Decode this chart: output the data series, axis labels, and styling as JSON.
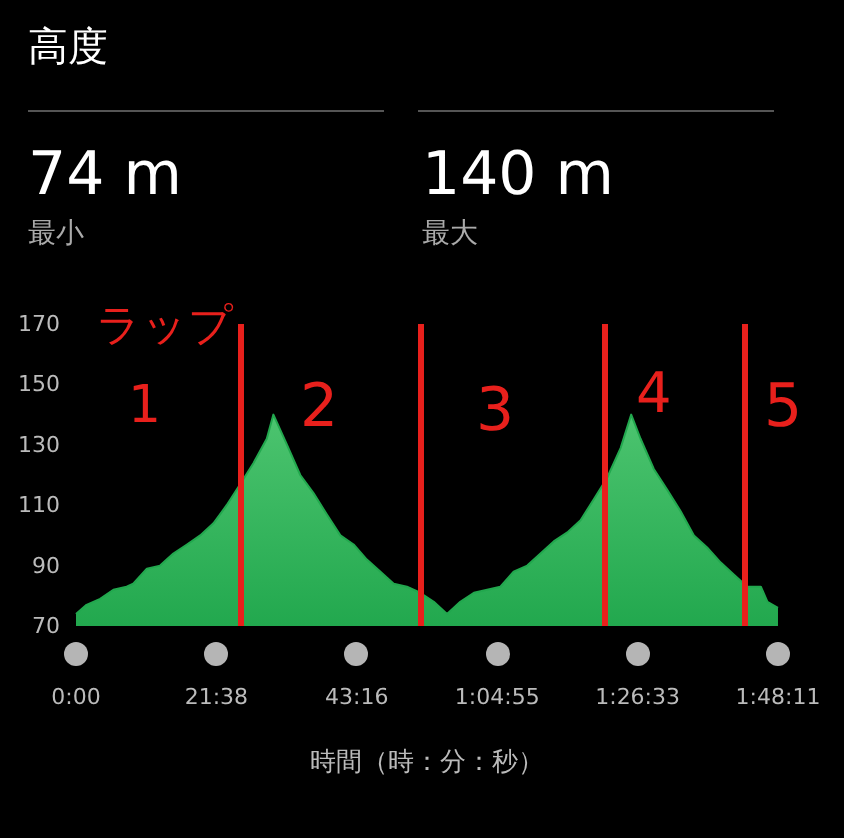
{
  "chart_data": {
    "type": "area",
    "title": "高度",
    "xlabel": "時間（時：分：秒）",
    "annotations": [
      "74 m",
      "最小",
      "140 m",
      "最大",
      "ラップ",
      "1",
      "2",
      "3",
      "4",
      "5"
    ],
    "x": [
      0,
      1.62,
      3.72,
      5.76,
      7.8,
      8.82,
      10.92,
      12.96,
      15,
      17.1,
      19.14,
      21.18,
      23.22,
      25.32,
      27.36,
      29.4,
      30.42,
      32.52,
      34.56,
      36.6,
      38.64,
      40.74,
      42.78,
      44.82,
      46.92,
      48.96,
      51,
      53.04,
      55.14,
      57.18,
      59.22,
      61.32,
      63.36,
      65.4,
      67.44,
      69.54,
      71.58,
      73.62,
      75.72,
      77.76,
      79.8,
      81.84,
      83.94,
      85.56,
      87,
      89.04,
      91.14,
      93.18,
      95.22,
      97.26,
      99.36,
      101.4,
      103.44,
      105.54,
      106.56,
      108.18
    ],
    "values": [
      74,
      77,
      79,
      82,
      83,
      84,
      89,
      90,
      94,
      97,
      100,
      104,
      110,
      117,
      124,
      132,
      140,
      130,
      120,
      114,
      107,
      100,
      97,
      92,
      88,
      84,
      83,
      81,
      78,
      74,
      78,
      81,
      82,
      83,
      88,
      90,
      94,
      98,
      101,
      105,
      112,
      119,
      129,
      140,
      132,
      122,
      115,
      108,
      100,
      96,
      91,
      87,
      83,
      83,
      78,
      76
    ],
    "color": "#22a84e",
    "xlim": [
      0,
      108.183
    ],
    "xticks": [
      {
        "value": 0,
        "label": "0:00"
      },
      {
        "value": 21.633,
        "label": "21:38"
      },
      {
        "value": 43.267,
        "label": "43:16"
      },
      {
        "value": 64.917,
        "label": "1:04:55"
      },
      {
        "value": 86.55,
        "label": "1:26:33"
      },
      {
        "value": 108.183,
        "label": "1:48:11"
      }
    ],
    "ylim": [
      70,
      170
    ],
    "yticks": [
      70,
      90,
      110,
      130,
      150,
      170
    ],
    "grid": false,
    "marker": "none",
    "line_style": "solid",
    "ref_lines": [
      {
        "axis": "x",
        "value": 25.3,
        "color": "#e8201c",
        "line_style": "solid"
      },
      {
        "axis": "x",
        "value": 53.06,
        "color": "#e8201c",
        "line_style": "solid"
      },
      {
        "axis": "x",
        "value": 81.35,
        "color": "#e8201c",
        "line_style": "solid"
      },
      {
        "axis": "x",
        "value": 102.94,
        "color": "#e8201c",
        "line_style": "solid"
      }
    ]
  }
}
